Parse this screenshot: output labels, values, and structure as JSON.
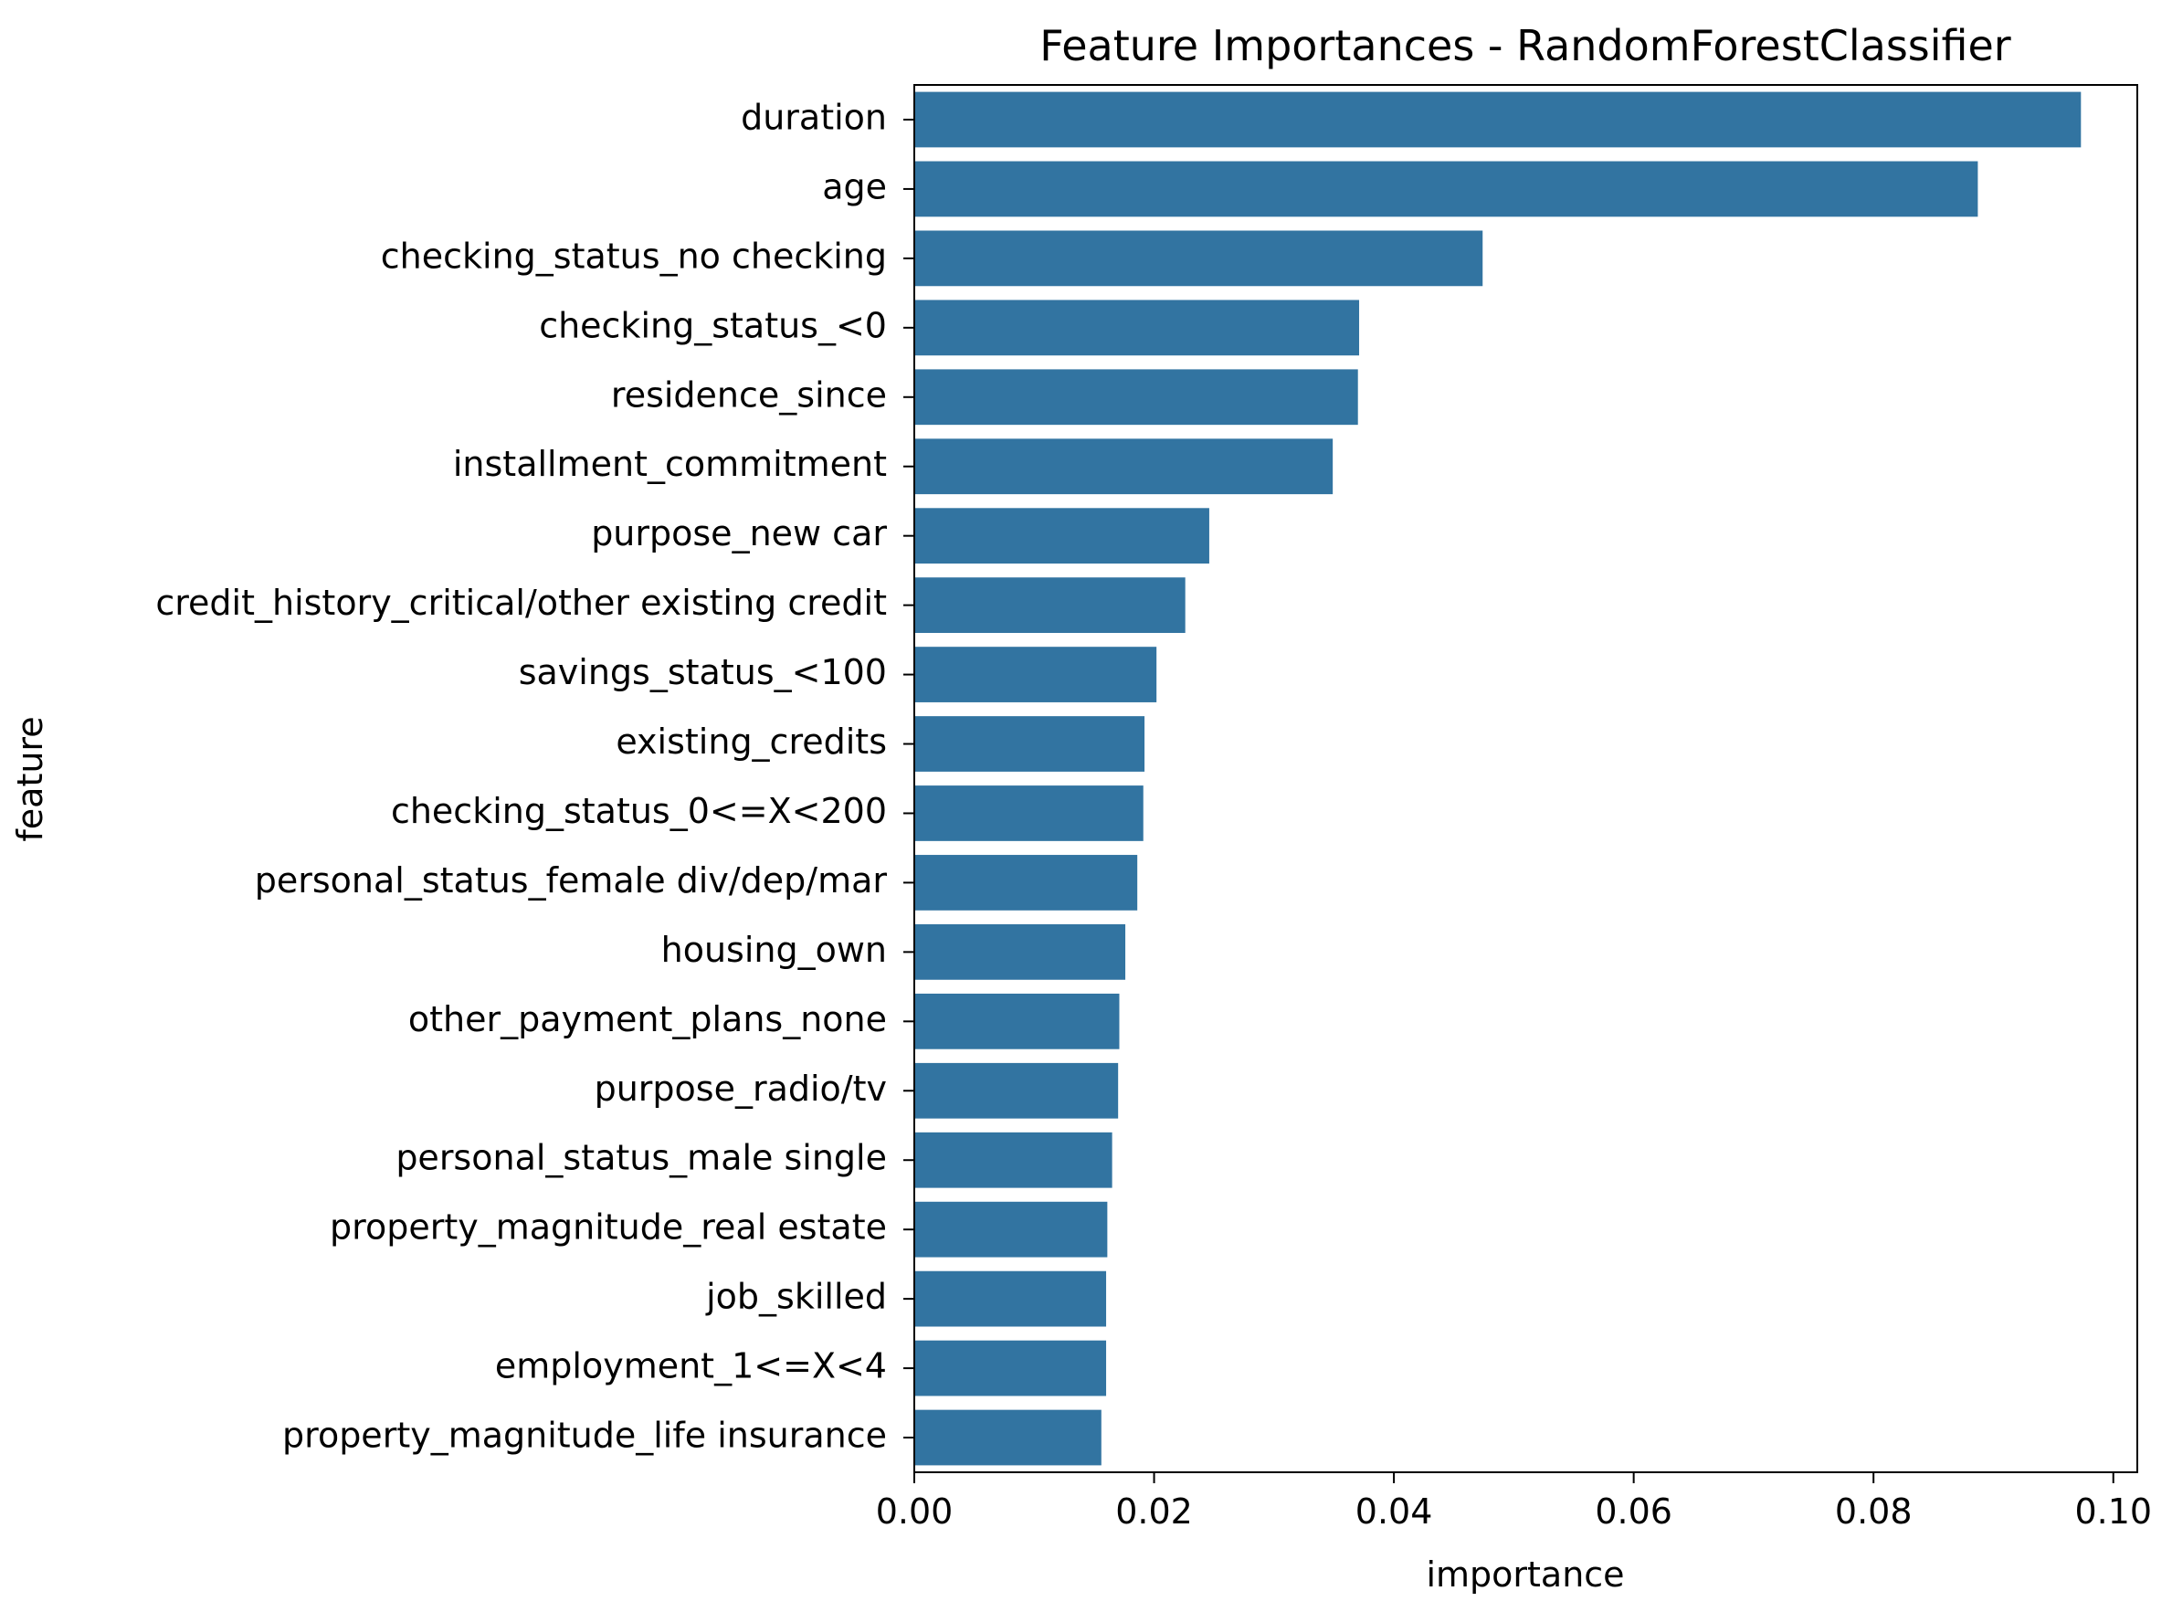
{
  "chart_data": {
    "type": "bar",
    "orientation": "horizontal",
    "title": "Feature Importances - RandomForestClassifier",
    "xlabel": "importance",
    "ylabel": "feature",
    "xlim": [
      0,
      0.102
    ],
    "xticks": [
      "0.00",
      "0.02",
      "0.04",
      "0.06",
      "0.08",
      "0.10"
    ],
    "xtick_values": [
      0.0,
      0.02,
      0.04,
      0.06,
      0.08,
      0.1
    ],
    "bar_color": "#3274a1",
    "grid": false,
    "categories": [
      "duration",
      "age",
      "checking_status_no checking",
      "checking_status_<0",
      "residence_since",
      "installment_commitment",
      "purpose_new car",
      "credit_history_critical/other existing credit",
      "savings_status_<100",
      "existing_credits",
      "checking_status_0<=X<200",
      "personal_status_female div/dep/mar",
      "housing_own",
      "other_payment_plans_none",
      "purpose_radio/tv",
      "personal_status_male single",
      "property_magnitude_real estate",
      "job_skilled",
      "employment_1<=X<4",
      "property_magnitude_life insurance"
    ],
    "values": [
      0.0973,
      0.0887,
      0.0474,
      0.0371,
      0.037,
      0.0349,
      0.0246,
      0.0226,
      0.0202,
      0.0192,
      0.0191,
      0.0186,
      0.0176,
      0.0171,
      0.017,
      0.0165,
      0.0161,
      0.016,
      0.016,
      0.0156
    ]
  }
}
